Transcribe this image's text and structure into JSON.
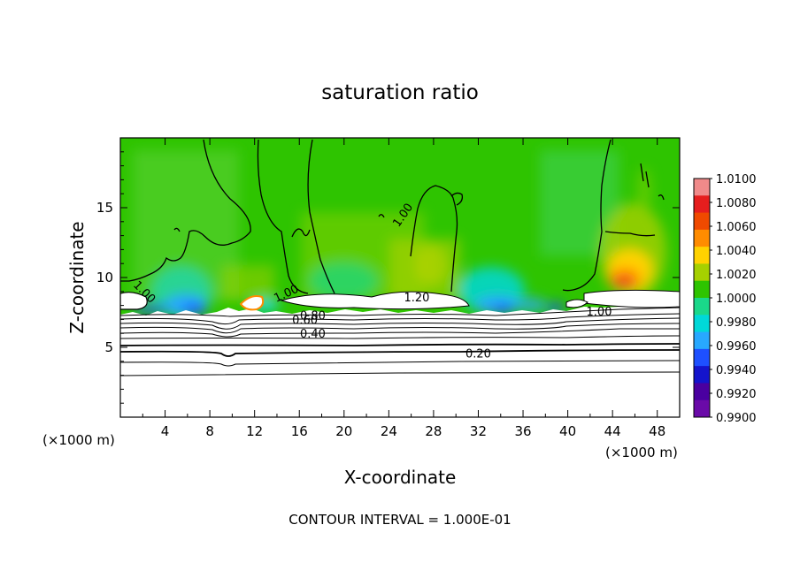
{
  "chart_data": {
    "type": "heatmap",
    "title": "saturation ratio",
    "xlabel": "X-coordinate",
    "ylabel": "Z-coordinate",
    "x_unit_left": "(×1000 m)",
    "x_unit_right": "(×1000 m)",
    "xlim": [
      0,
      50
    ],
    "ylim": [
      0,
      20
    ],
    "x_ticks": [
      4,
      8,
      12,
      16,
      20,
      24,
      28,
      32,
      36,
      40,
      44,
      48
    ],
    "y_ticks": [
      5,
      10,
      15
    ],
    "footer": "CONTOUR INTERVAL = 1.000E-01",
    "colorbar": {
      "min": 0.99,
      "max": 1.01,
      "labels": [
        "1.0100",
        "1.0080",
        "1.0060",
        "1.0040",
        "1.0020",
        "1.0000",
        "0.9980",
        "0.9960",
        "0.9940",
        "0.9920",
        "0.9900"
      ],
      "colors": [
        "#f08a8a",
        "#e61e1e",
        "#f04a00",
        "#ff8c00",
        "#ffd200",
        "#a6d000",
        "#2ec400",
        "#1ad88a",
        "#00d8d8",
        "#28a8ff",
        "#1e50ff",
        "#1414cc",
        "#4a00a0",
        "#6a0aa8"
      ]
    },
    "contour_labels": [
      {
        "text": "1.00",
        "x": 2.2,
        "z": 9.0,
        "rot": 45
      },
      {
        "text": "1.00",
        "x": 14.8,
        "z": 8.9,
        "rot": -25
      },
      {
        "text": "1.00",
        "x": 25.2,
        "z": 14.5,
        "rot": -55
      },
      {
        "text": "1.00",
        "x": 42.8,
        "z": 7.6,
        "rot": 0
      },
      {
        "text": "1.20",
        "x": 26.5,
        "z": 8.6,
        "rot": 0
      },
      {
        "text": "0.80",
        "x": 17.2,
        "z": 7.3,
        "rot": 0
      },
      {
        "text": "0.60",
        "x": 16.5,
        "z": 7.0,
        "rot": 0
      },
      {
        "text": "0.40",
        "x": 17.2,
        "z": 6.0,
        "rot": 0
      },
      {
        "text": "0.20",
        "x": 32.0,
        "z": 4.6,
        "rot": 0
      }
    ]
  }
}
